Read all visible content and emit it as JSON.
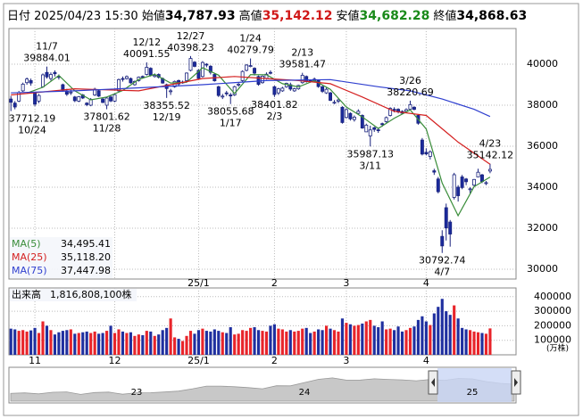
{
  "header": {
    "date_label": "日付",
    "date": "2025/04/23 15:30",
    "open_label": "始値",
    "open": "34,787.93",
    "high_label": "高値",
    "high": "35,142.12",
    "low_label": "安値",
    "low": "34,682.28",
    "close_label": "終値",
    "close": "34,868.63"
  },
  "chart_data": {
    "type": "candlestick",
    "ylim": [
      29520,
      41740
    ],
    "yticks": [
      30000,
      32000,
      34000,
      36000,
      38000,
      40000
    ],
    "grid": true,
    "up_color": "#ffffff",
    "down_color": "#1a2a9c",
    "outline_color": "#1a237e",
    "xticks": [
      {
        "value": 6,
        "label": "11"
      },
      {
        "value": 26,
        "label": "12"
      },
      {
        "value": 47,
        "label": "25/1"
      },
      {
        "value": 66,
        "label": "2"
      },
      {
        "value": 84,
        "label": "3"
      },
      {
        "value": 104,
        "label": "4"
      }
    ],
    "price_xticks": [
      {
        "value": 47,
        "label": "25/1"
      },
      {
        "value": 66,
        "label": "2"
      },
      {
        "value": 84,
        "label": "3"
      },
      {
        "value": 104,
        "label": "4"
      }
    ],
    "open": [
      38300,
      38100,
      38200,
      38700,
      39100,
      39200,
      38600,
      38200,
      38900,
      39600,
      39300,
      39600,
      39400,
      39000,
      38700,
      38600,
      38400,
      38200,
      38500,
      38100,
      38000,
      38500,
      38700,
      38300,
      38000,
      38400,
      38200,
      38700,
      39300,
      39300,
      39300,
      39000,
      39200,
      39400,
      39500,
      39800,
      39400,
      39500,
      39300,
      39000,
      38700,
      38900,
      39200,
      39100,
      39200,
      39700,
      40100,
      39700,
      39400,
      40000,
      39900,
      39500,
      38900,
      38400,
      38600,
      38500,
      38500,
      39000,
      39200,
      39700,
      39900,
      39800,
      39400,
      39100,
      39300,
      39600,
      38900,
      38600,
      38700,
      38900,
      39000,
      38700,
      38800,
      39100,
      39400,
      39200,
      39200,
      39200,
      38900,
      38600,
      38600,
      38100,
      38200,
      37900,
      37400,
      37600,
      37300,
      37600,
      37500,
      36700,
      36500,
      36900,
      36800,
      37100,
      37200,
      37500,
      37800,
      37800,
      37700,
      37700,
      37800,
      37900,
      37500,
      36300,
      35700,
      35500,
      34800,
      34400,
      31600,
      33000,
      32300,
      33500,
      34000,
      34500,
      34400,
      33900,
      34100,
      34500,
      34600,
      34200,
      34787.93
    ],
    "high": [
      38450,
      38200,
      38700,
      39100,
      39350,
      39300,
      38650,
      38550,
      39550,
      39884.01,
      39600,
      39700,
      39500,
      39050,
      38800,
      38750,
      38450,
      38450,
      38550,
      38150,
      38350,
      38850,
      38750,
      38350,
      38400,
      38500,
      38550,
      39300,
      39400,
      39450,
      39350,
      39200,
      39400,
      39450,
      40091.55,
      39850,
      39550,
      39550,
      39350,
      39050,
      38800,
      39200,
      39250,
      39200,
      39600,
      40398.23,
      40150,
      39750,
      40150,
      40050,
      39950,
      39550,
      38950,
      38550,
      38700,
      38600,
      38950,
      39100,
      39700,
      40000,
      40279.79,
      39850,
      39450,
      39450,
      39600,
      39700,
      38950,
      38850,
      38900,
      39100,
      39100,
      38850,
      39000,
      39581.47,
      39450,
      39250,
      39350,
      39250,
      38950,
      38850,
      38650,
      38250,
      38350,
      37950,
      37850,
      37650,
      37500,
      37800,
      37550,
      37100,
      37000,
      36950,
      36900,
      37150,
      37450,
      37900,
      37900,
      37850,
      37750,
      37850,
      38220.69,
      37950,
      37550,
      36400,
      35900,
      35800,
      34900,
      34500,
      31900,
      33200,
      32400,
      34700,
      34100,
      34600,
      34450,
      34000,
      34400,
      34900,
      34650,
      34300,
      35142.12
    ],
    "low": [
      37712.19,
      37800,
      38150,
      38650,
      39000,
      38950,
      37950,
      38100,
      38850,
      39300,
      39200,
      39400,
      39250,
      38650,
      38450,
      38500,
      38150,
      38150,
      38300,
      37950,
      37950,
      38450,
      38400,
      38100,
      37801.62,
      38150,
      38150,
      38650,
      39150,
      39250,
      39050,
      38950,
      39150,
      39300,
      39450,
      39400,
      39350,
      39300,
      39050,
      38355.52,
      38500,
      38850,
      38950,
      39050,
      39150,
      39650,
      39850,
      39250,
      39350,
      39850,
      39500,
      39150,
      38400,
      38300,
      38450,
      38055.68,
      38450,
      38900,
      39150,
      39650,
      39850,
      39450,
      38950,
      39050,
      39250,
      39500,
      38401.82,
      38500,
      38650,
      38850,
      38700,
      38650,
      38750,
      39050,
      39100,
      39100,
      39150,
      38850,
      38600,
      38550,
      38200,
      38050,
      38100,
      37100,
      37350,
      37250,
      37200,
      37550,
      36850,
      36700,
      35987.13,
      36700,
      36650,
      36950,
      37150,
      37450,
      37650,
      37600,
      37550,
      37650,
      37750,
      37750,
      37050,
      35550,
      35550,
      35350,
      34600,
      33700,
      30792.74,
      31400,
      31100,
      33400,
      33300,
      33900,
      34100,
      33700,
      34000,
      34500,
      34200,
      34100,
      34682.28
    ],
    "close": [
      38143,
      37913,
      38605,
      39027,
      39277,
      39081,
      38053,
      38474,
      39480,
      39381,
      39500,
      39533,
      39376,
      38721,
      38535,
      38642,
      38220,
      38414,
      38352,
      38026,
      38283,
      38780,
      38442,
      38134,
      38349,
      38208,
      38513,
      39248,
      39276,
      39395,
      39091,
      39160,
      39367,
      39372,
      39849,
      39470,
      39457,
      39364,
      39081,
      38813,
      38701,
      39161,
      39036,
      39130,
      39568,
      40281,
      39894,
      39307,
      40083,
      39981,
      39605,
      39190,
      38474,
      38444,
      38572,
      38451,
      38902,
      39027,
      39646,
      39958,
      39931,
      39565,
      39016,
      39414,
      39513,
      39572,
      38520,
      38798,
      38831,
      39066,
      38787,
      38801,
      38963,
      39461,
      39149,
      39174,
      39270,
      38909,
      38678,
      38776,
      38237,
      38142,
      38256,
      37155,
      37785,
      37331,
      37418,
      37704,
      36887,
      37028,
      36793,
      36819,
      36790,
      37053,
      37396,
      37845,
      37751,
      37677,
      37608,
      37780,
      38027,
      37799,
      37120,
      35617,
      35624,
      35725,
      34735,
      33780,
      31136,
      32012,
      31714,
      34609,
      33585,
      33982,
      34267,
      33920,
      34377,
      34730,
      34279,
      34220,
      34868.63
    ],
    "ma": [
      {
        "name": "MA(5)",
        "color": "#3a8d3a",
        "current": {
          "value": 34495.41,
          "label": "34,495.41"
        },
        "x": [
          4,
          8,
          12,
          16,
          20,
          24,
          28,
          32,
          36,
          40,
          44,
          48,
          52,
          56,
          60,
          64,
          68,
          72,
          76,
          80,
          84,
          88,
          92,
          96,
          100,
          104,
          108,
          112,
          116,
          120
        ],
        "values": [
          38593,
          38873,
          39454,
          38699,
          38259,
          38398,
          38719,
          39258,
          39503,
          39083,
          39119,
          39827,
          39467,
          38569,
          39493,
          39488,
          39047,
          38890,
          39203,
          38774,
          37915,
          37425,
          36863,
          37367,
          37769,
          36837,
          34200,
          32611,
          34026,
          34495.41
        ]
      },
      {
        "name": "MA(25)",
        "color": "#d42020",
        "current": {
          "value": 35118.2,
          "label": "35,118.20"
        },
        "x": [
          0,
          8,
          16,
          24,
          32,
          40,
          48,
          56,
          64,
          72,
          80,
          88,
          96,
          104,
          112,
          120
        ],
        "values": [
          38500,
          38650,
          38800,
          38750,
          38700,
          39000,
          39300,
          39400,
          39300,
          39200,
          39050,
          38400,
          37700,
          37500,
          36200,
          35118.2
        ]
      },
      {
        "name": "MA(75)",
        "color": "#2f3fcf",
        "current": {
          "value": 37447.98,
          "label": "37,447.98"
        },
        "x": [
          0,
          16,
          32,
          48,
          64,
          80,
          92,
          100,
          108,
          116,
          120
        ],
        "values": [
          38600,
          38700,
          38850,
          39000,
          39200,
          39250,
          38900,
          38700,
          38300,
          37800,
          37447.98
        ]
      }
    ],
    "annotations": [
      {
        "kind": "high",
        "index": 9,
        "date": "11/7",
        "value": 39884.01
      },
      {
        "kind": "high",
        "index": 34,
        "date": "12/12",
        "value": 40091.55
      },
      {
        "kind": "high",
        "index": 45,
        "date": "12/27",
        "value": 40398.23
      },
      {
        "kind": "high",
        "index": 60,
        "date": "1/24",
        "value": 40279.79
      },
      {
        "kind": "high",
        "index": 73,
        "date": "2/13",
        "value": 39581.47
      },
      {
        "kind": "high",
        "index": 100,
        "date": "3/26",
        "value": 38220.69
      },
      {
        "kind": "high",
        "index": 120,
        "date": "4/23",
        "value": 35142.12
      },
      {
        "kind": "low",
        "index": 0,
        "date": "10/24",
        "value": 37712.19
      },
      {
        "kind": "low",
        "index": 24,
        "date": "11/28",
        "value": 37801.62
      },
      {
        "kind": "low",
        "index": 39,
        "date": "12/19",
        "value": 38355.52
      },
      {
        "kind": "low",
        "index": 55,
        "date": "1/17",
        "value": 38055.68
      },
      {
        "kind": "low",
        "index": 66,
        "date": "2/3",
        "value": 38401.82
      },
      {
        "kind": "low",
        "index": 90,
        "date": "3/11",
        "value": 35987.13
      },
      {
        "kind": "low",
        "index": 108,
        "date": "4/7",
        "value": 30792.74
      }
    ],
    "volume": {
      "title": "出来高",
      "total": "1,816,808,100株",
      "unit": "(万株)",
      "up_color": "#e8242a",
      "down_color": "#1f2f9f",
      "ylim": [
        0,
        460000
      ],
      "yticks": [
        100000,
        200000,
        300000,
        400000
      ],
      "values": [
        180000,
        175000,
        165000,
        170000,
        160000,
        168000,
        185000,
        150000,
        230000,
        200000,
        170000,
        140000,
        155000,
        165000,
        170000,
        175000,
        145000,
        150000,
        155000,
        160000,
        150000,
        160000,
        145000,
        150000,
        165000,
        200000,
        150000,
        175000,
        160000,
        150000,
        155000,
        130000,
        140000,
        135000,
        165000,
        160000,
        130000,
        140000,
        170000,
        185000,
        250000,
        120000,
        110000,
        95000,
        130000,
        165000,
        145000,
        170000,
        180000,
        165000,
        160000,
        175000,
        165000,
        155000,
        150000,
        190000,
        140000,
        145000,
        170000,
        165000,
        185000,
        190000,
        170000,
        165000,
        160000,
        200000,
        210000,
        180000,
        175000,
        160000,
        170000,
        160000,
        165000,
        180000,
        185000,
        150000,
        160000,
        175000,
        170000,
        200000,
        180000,
        170000,
        160000,
        250000,
        220000,
        210000,
        200000,
        205000,
        215000,
        230000,
        240000,
        200000,
        190000,
        230000,
        175000,
        180000,
        170000,
        195000,
        160000,
        170000,
        185000,
        195000,
        240000,
        265000,
        230000,
        205000,
        285000,
        330000,
        385000,
        300000,
        275000,
        340000,
        250000,
        185000,
        175000,
        170000,
        160000,
        155000,
        150000,
        145000,
        181680.81
      ]
    },
    "navigator": {
      "ylim": [
        20000,
        45000
      ],
      "xticks": [
        {
          "value": 9,
          "label": "23"
        },
        {
          "value": 21,
          "label": "24"
        },
        {
          "value": 33,
          "label": "25"
        }
      ],
      "values": [
        26850,
        27280,
        26390,
        27800,
        28090,
        25940,
        27590,
        27970,
        26090,
        27330,
        27450,
        28040,
        28860,
        30890,
        33190,
        33170,
        32620,
        31860,
        30860,
        33490,
        33460,
        36290,
        39170,
        40370,
        38410,
        38490,
        39580,
        39100,
        38650,
        37920,
        39080,
        38210,
        39890,
        39570,
        37160,
        35620,
        34870
      ]
    }
  }
}
